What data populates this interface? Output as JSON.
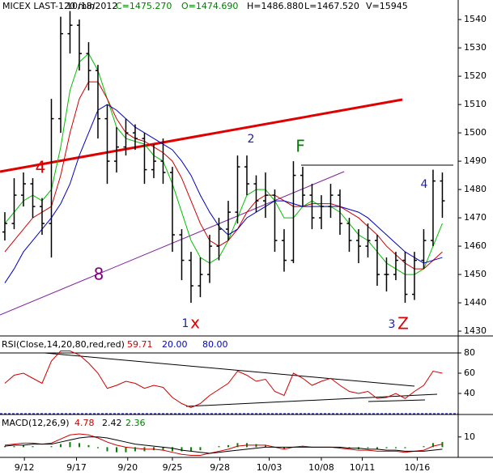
{
  "chart_data": [
    {
      "type": "ohlc",
      "header": [
        {
          "text": "MICEX LAST-120 min",
          "color": "#000000"
        },
        {
          "text": "10/18/2012",
          "color": "#000000"
        },
        {
          "text": "C=1475.270",
          "color": "#008000"
        },
        {
          "text": "O=1474.690",
          "color": "#008000"
        },
        {
          "text": "H=1486.880",
          "color": "#000000"
        },
        {
          "text": "L=1467.520",
          "color": "#000000"
        },
        {
          "text": "V=15945",
          "color": "#000000"
        }
      ],
      "ylim": [
        1428.3,
        1546.9
      ],
      "yticks": [
        1430,
        1440,
        1450,
        1460,
        1470,
        1480,
        1490,
        1500,
        1510,
        1520,
        1530,
        1540
      ],
      "bar_color": "#000000",
      "open": [
        1465,
        1468,
        1478,
        1482,
        1474,
        1468,
        1505,
        1535,
        1538,
        1528,
        1522,
        1505,
        1490,
        1495,
        1500,
        1498,
        1487,
        1490,
        1486,
        1464,
        1455,
        1446,
        1450,
        1460,
        1466,
        1472,
        1488,
        1482,
        1476,
        1478,
        1462,
        1455,
        1485,
        1478,
        1470,
        1474,
        1478,
        1468,
        1462,
        1460,
        1462,
        1450,
        1450,
        1455,
        1443,
        1455,
        1462,
        1483
      ],
      "high": [
        1472,
        1484,
        1486,
        1484,
        1477,
        1512,
        1541,
        1543,
        1540,
        1532,
        1524,
        1510,
        1502,
        1505,
        1503,
        1500,
        1496,
        1498,
        1488,
        1466,
        1458,
        1456,
        1464,
        1470,
        1476,
        1492,
        1492,
        1485,
        1486,
        1480,
        1466,
        1490,
        1488,
        1482,
        1478,
        1482,
        1480,
        1470,
        1466,
        1468,
        1464,
        1456,
        1458,
        1458,
        1458,
        1466,
        1487,
        1486
      ],
      "low": [
        1462,
        1466,
        1474,
        1470,
        1464,
        1456,
        1500,
        1528,
        1522,
        1515,
        1498,
        1482,
        1486,
        1492,
        1494,
        1482,
        1484,
        1482,
        1458,
        1448,
        1440,
        1442,
        1447,
        1455,
        1462,
        1468,
        1478,
        1472,
        1470,
        1458,
        1451,
        1454,
        1474,
        1466,
        1466,
        1470,
        1464,
        1458,
        1454,
        1456,
        1446,
        1444,
        1448,
        1440,
        1441,
        1452,
        1460,
        1470
      ],
      "close": [
        1468,
        1478,
        1482,
        1474,
        1468,
        1505,
        1535,
        1538,
        1528,
        1522,
        1505,
        1490,
        1495,
        1500,
        1498,
        1487,
        1490,
        1486,
        1464,
        1455,
        1446,
        1450,
        1460,
        1466,
        1472,
        1488,
        1482,
        1476,
        1478,
        1462,
        1455,
        1485,
        1478,
        1470,
        1474,
        1478,
        1468,
        1462,
        1460,
        1462,
        1450,
        1450,
        1455,
        1443,
        1455,
        1462,
        1483,
        1476
      ],
      "series": [
        {
          "color": "#00c000",
          "values": [
            1468,
            1472,
            1476,
            1478,
            1476,
            1480,
            1495,
            1515,
            1525,
            1528,
            1522,
            1512,
            1502,
            1498,
            1497,
            1496,
            1492,
            1490,
            1482,
            1472,
            1462,
            1456,
            1454,
            1456,
            1462,
            1470,
            1478,
            1480,
            1480,
            1476,
            1470,
            1470,
            1474,
            1476,
            1474,
            1474,
            1472,
            1468,
            1464,
            1462,
            1458,
            1454,
            1452,
            1450,
            1450,
            1452,
            1460,
            1468
          ]
        },
        {
          "color": "#d00000",
          "values": [
            1458,
            1462,
            1466,
            1470,
            1472,
            1474,
            1485,
            1500,
            1512,
            1518,
            1518,
            1512,
            1505,
            1500,
            1498,
            1497,
            1495,
            1493,
            1490,
            1484,
            1476,
            1468,
            1462,
            1460,
            1462,
            1466,
            1472,
            1476,
            1478,
            1478,
            1476,
            1474,
            1474,
            1475,
            1475,
            1475,
            1474,
            1472,
            1470,
            1467,
            1464,
            1460,
            1457,
            1454,
            1452,
            1452,
            1455,
            1458
          ]
        },
        {
          "color": "#0000c0",
          "values": [
            1447,
            1452,
            1458,
            1462,
            1466,
            1470,
            1475,
            1482,
            1492,
            1500,
            1508,
            1510,
            1508,
            1505,
            1502,
            1500,
            1498,
            1496,
            1494,
            1490,
            1485,
            1478,
            1472,
            1467,
            1464,
            1466,
            1470,
            1472,
            1474,
            1476,
            1476,
            1475,
            1474,
            1474,
            1474,
            1474,
            1474,
            1473,
            1472,
            1470,
            1467,
            1464,
            1461,
            1458,
            1456,
            1454,
            1455,
            1456
          ]
        }
      ],
      "annotations": [
        {
          "text": "4",
          "color": "#e00000"
        },
        {
          "text": "8",
          "color": "#800080"
        },
        {
          "text": "2",
          "color": "#2020a0"
        },
        {
          "text": "F",
          "color": "#008000"
        },
        {
          "text": "1",
          "color": "#2020a0"
        },
        {
          "text": "x",
          "color": "#e00000"
        },
        {
          "text": "3",
          "color": "#2020a0"
        },
        {
          "text": "Z",
          "color": "#e00000"
        },
        {
          "text": "4",
          "color": "#2020a0"
        }
      ]
    },
    {
      "type": "line",
      "legend": [
        {
          "text": "RSI(Close,14,20,80,red,red)",
          "color": "#000000"
        },
        {
          "text": "59.71",
          "color": "#d00000"
        },
        {
          "text": "20.00",
          "color": "#0000c0"
        },
        {
          "text": "80.00",
          "color": "#0000c0"
        }
      ],
      "ylim": [
        19.2,
        96.8
      ],
      "yticks": [
        40,
        60,
        80
      ],
      "levels": [
        20,
        80
      ],
      "level_colors": [
        "#0000c0",
        "#000000"
      ],
      "series": [
        {
          "color": "#d00000",
          "values": [
            50,
            58,
            60,
            55,
            50,
            72,
            82,
            82,
            78,
            70,
            60,
            45,
            48,
            52,
            50,
            45,
            48,
            46,
            36,
            30,
            26,
            30,
            38,
            44,
            50,
            62,
            58,
            52,
            54,
            42,
            38,
            60,
            55,
            48,
            52,
            55,
            48,
            42,
            40,
            42,
            35,
            36,
            40,
            35,
            42,
            48,
            62,
            60
          ]
        }
      ]
    },
    {
      "type": "macd",
      "legend": [
        {
          "text": "MACD(12,26,9)",
          "color": "#000000"
        },
        {
          "text": "4.78",
          "color": "#d00000"
        },
        {
          "text": "2.42",
          "color": "#000000"
        },
        {
          "text": "2.36",
          "color": "#008000"
        }
      ],
      "ylim": [
        -10,
        32
      ],
      "yticks": [
        10
      ],
      "xlim": [
        -0.52,
        48.7
      ],
      "xticks": [
        {
          "value": 2.1,
          "label": "9/12"
        },
        {
          "value": 7.7,
          "label": "9/17"
        },
        {
          "value": 13.2,
          "label": "9/20"
        },
        {
          "value": 18,
          "label": "9/25"
        },
        {
          "value": 23.1,
          "label": "9/28"
        },
        {
          "value": 28.4,
          "label": "10/03"
        },
        {
          "value": 34,
          "label": "10/08"
        },
        {
          "value": 38.4,
          "label": "10/11"
        },
        {
          "value": 44.3,
          "label": "10/16"
        }
      ],
      "series": [
        {
          "color": "#008000",
          "style": "bar",
          "values": [
            1,
            1,
            2,
            1,
            0,
            1,
            3,
            5,
            4,
            2,
            -1,
            -4,
            -5,
            -5,
            -4,
            -4,
            -3,
            -3,
            -4,
            -4,
            -4,
            -3,
            0,
            1,
            2,
            4,
            4,
            3,
            2,
            0,
            -2,
            0,
            1,
            0,
            0,
            0,
            -1,
            -1,
            -2,
            -1,
            -2,
            -1,
            -1,
            -1,
            0,
            1,
            4,
            5
          ]
        },
        {
          "color": "#d00000",
          "style": "line",
          "values": [
            2,
            3,
            4,
            4,
            3,
            4,
            8,
            12,
            13,
            12,
            9,
            5,
            2,
            0,
            -1,
            -2,
            -2,
            -3,
            -5,
            -7,
            -8,
            -8,
            -6,
            -4,
            -2,
            1,
            2,
            2,
            2,
            0,
            -2,
            0,
            1,
            0,
            0,
            0,
            -1,
            -2,
            -3,
            -3,
            -4,
            -4,
            -4,
            -5,
            -4,
            -3,
            1,
            3
          ]
        },
        {
          "color": "#000000",
          "style": "line",
          "values": [
            1,
            2,
            2,
            3,
            3,
            3,
            5,
            7,
            9,
            10,
            10,
            9,
            7,
            5,
            3,
            2,
            1,
            0,
            -1,
            -3,
            -4,
            -5,
            -6,
            -5,
            -4,
            -3,
            -2,
            -1,
            0,
            0,
            0,
            0,
            0,
            0,
            0,
            0,
            0,
            -1,
            -1,
            -2,
            -2,
            -3,
            -3,
            -4,
            -4,
            -4,
            -3,
            -2
          ]
        }
      ]
    }
  ]
}
